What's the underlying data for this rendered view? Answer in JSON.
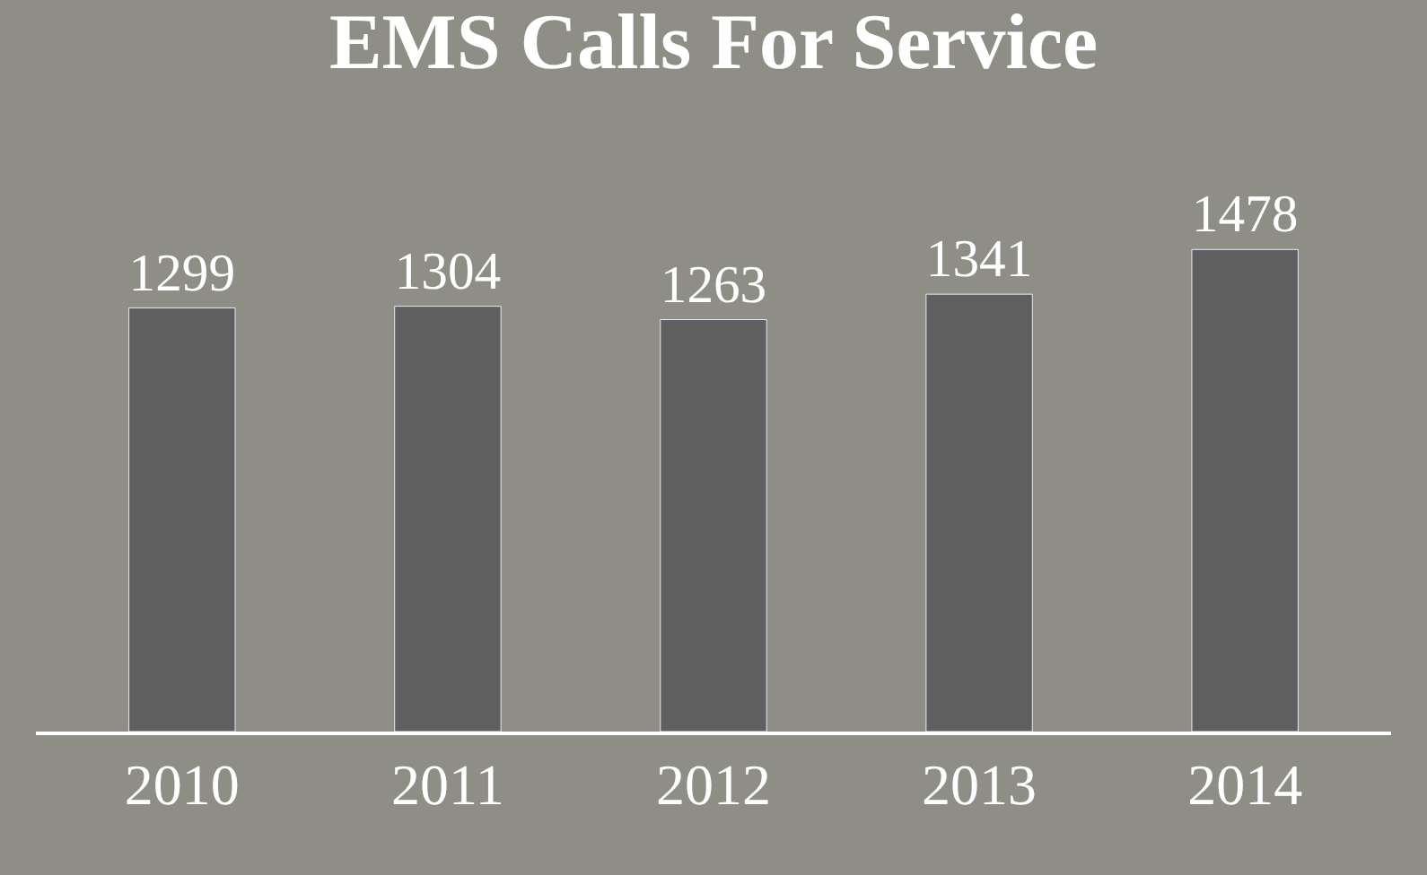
{
  "chart_data": {
    "type": "bar",
    "title": "EMS Calls For Service",
    "categories": [
      "2010",
      "2011",
      "2012",
      "2013",
      "2014"
    ],
    "values": [
      1299,
      1304,
      1263,
      1341,
      1478
    ],
    "color": "#5f5f5f",
    "data_labels": true,
    "grid": false,
    "legend": false
  }
}
